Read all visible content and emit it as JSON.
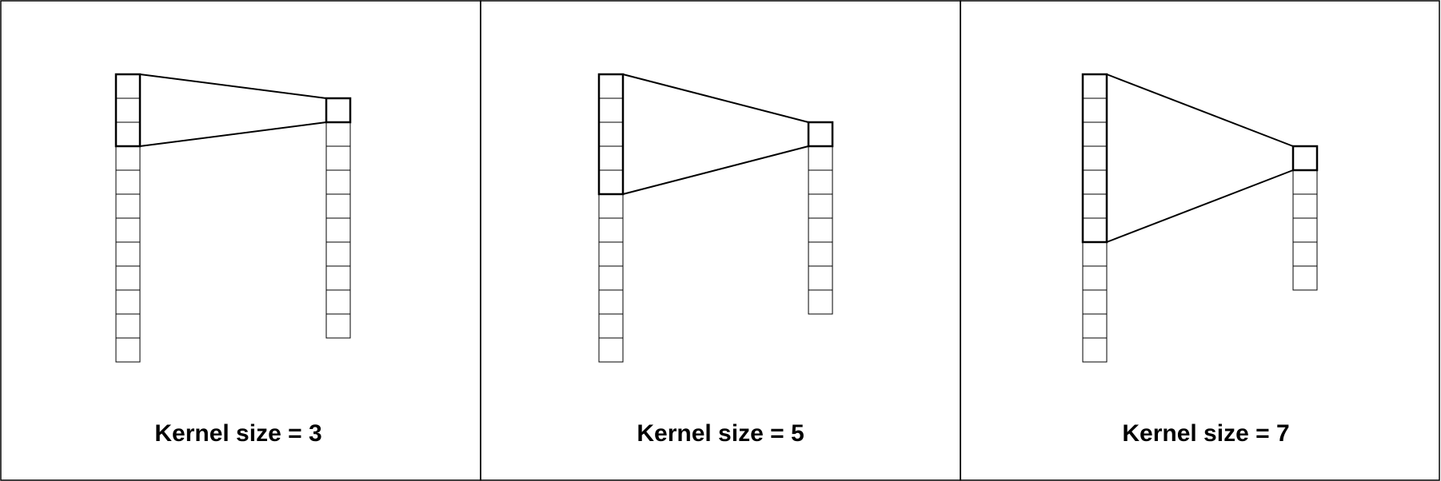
{
  "panels": [
    {
      "caption": "Kernel size = 3",
      "kernel_size": 3,
      "input_cells": 12,
      "output_cells": 10
    },
    {
      "caption": "Kernel size = 5",
      "kernel_size": 5,
      "input_cells": 12,
      "output_cells": 8
    },
    {
      "caption": "Kernel size = 7",
      "kernel_size": 7,
      "input_cells": 12,
      "output_cells": 6
    }
  ],
  "colors": {
    "stroke": "#000000",
    "background": "#ffffff",
    "text": "#000000"
  }
}
